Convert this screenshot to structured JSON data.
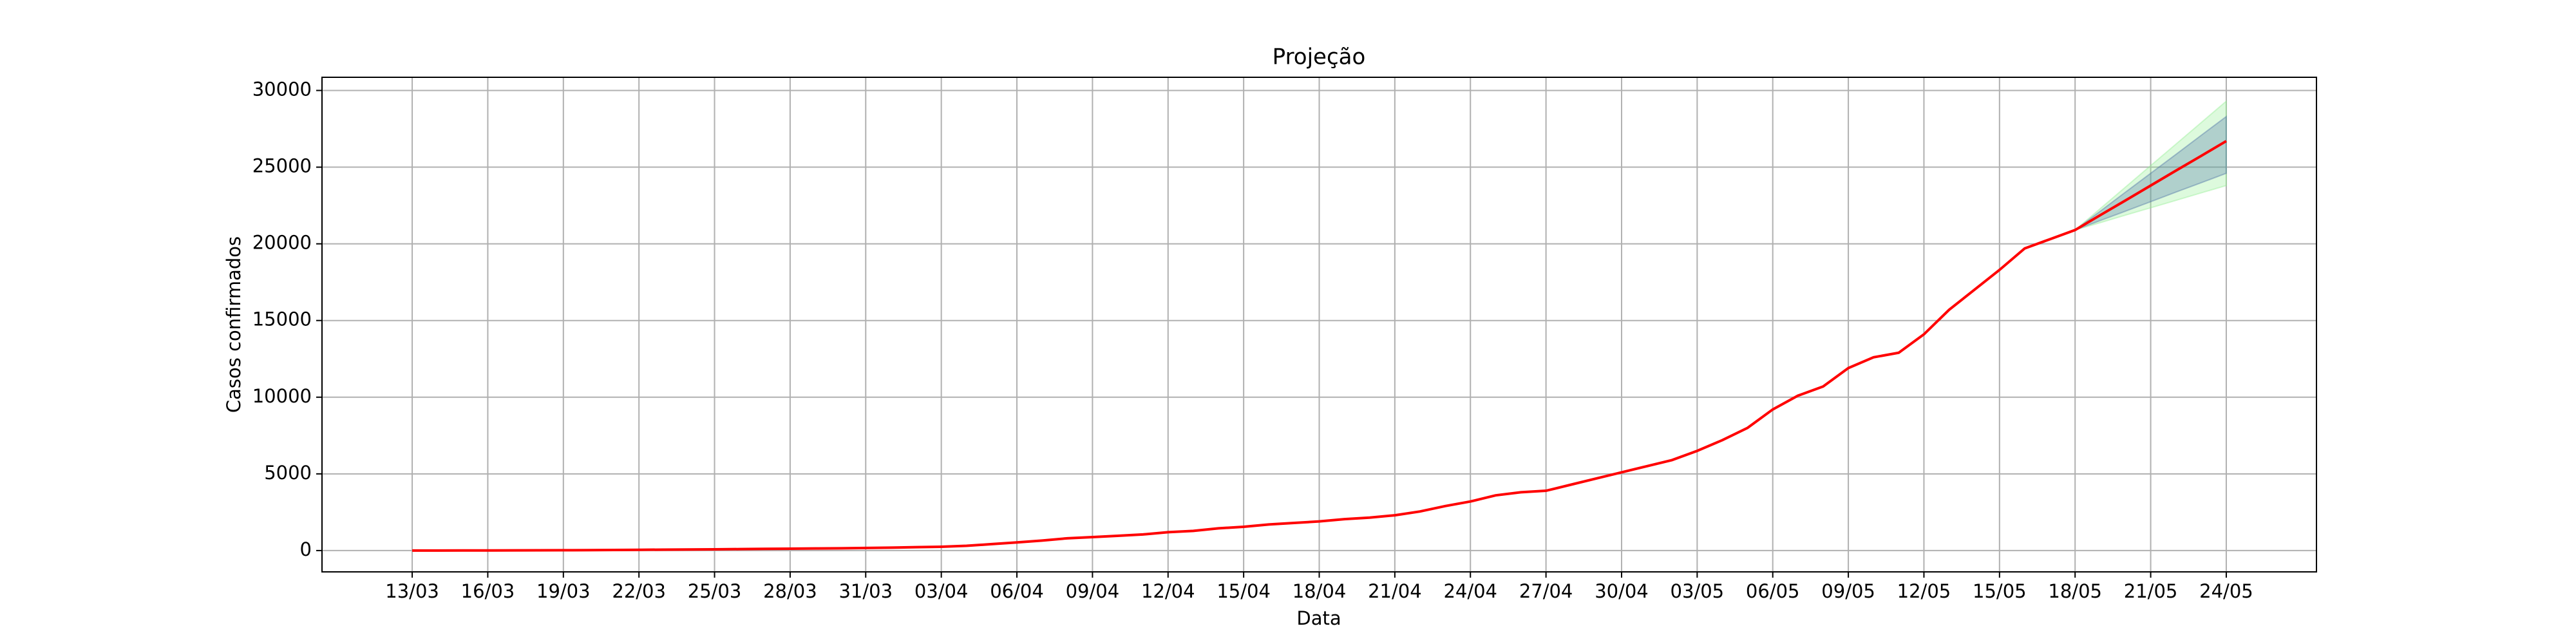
{
  "chart_data": {
    "type": "line",
    "title": "Projeção",
    "xlabel": "Data",
    "ylabel": "Casos confirmados",
    "categories": [
      "13/03",
      null,
      null,
      "16/03",
      null,
      null,
      "19/03",
      null,
      null,
      "22/03",
      null,
      null,
      "25/03",
      null,
      null,
      "28/03",
      null,
      null,
      "31/03",
      null,
      null,
      "03/04",
      null,
      null,
      "06/04",
      null,
      null,
      "09/04",
      null,
      null,
      "12/04",
      null,
      null,
      "15/04",
      null,
      null,
      "18/04",
      null,
      null,
      "21/04",
      null,
      null,
      "24/04",
      null,
      null,
      "27/04",
      null,
      null,
      "30/04",
      null,
      null,
      "03/05",
      null,
      null,
      "06/05",
      null,
      null,
      "09/05",
      null,
      null,
      "12/05",
      null,
      null,
      "15/05",
      null,
      null,
      "18/05",
      null,
      null,
      "21/05",
      null,
      null,
      "24/05"
    ],
    "series": [
      {
        "color": "#ff0000",
        "values": [
          0,
          2,
          5,
          8,
          12,
          16,
          20,
          28,
          38,
          50,
          60,
          70,
          80,
          95,
          110,
          120,
          135,
          150,
          170,
          190,
          220,
          250,
          310,
          420,
          530,
          650,
          800,
          880,
          960,
          1050,
          1200,
          1280,
          1450,
          1550,
          1700,
          1800,
          1900,
          2050,
          2150,
          2300,
          2550,
          2900,
          3200,
          3600,
          3800,
          3900,
          4300,
          4700,
          5100,
          5500,
          5900,
          6500,
          7200,
          8000,
          9200,
          10100,
          10700,
          11900,
          12600,
          12900,
          14100,
          15700,
          17000,
          18300,
          19700,
          20300,
          20900,
          21870,
          22830,
          23800,
          24770,
          25730,
          26700
        ]
      }
    ],
    "bands": [
      {
        "color": "#90ee90",
        "lower": [
          null,
          null,
          null,
          null,
          null,
          null,
          null,
          null,
          null,
          null,
          null,
          null,
          null,
          null,
          null,
          null,
          null,
          null,
          null,
          null,
          null,
          null,
          null,
          null,
          null,
          null,
          null,
          null,
          null,
          null,
          null,
          null,
          null,
          null,
          null,
          null,
          null,
          null,
          null,
          null,
          null,
          null,
          null,
          null,
          null,
          null,
          null,
          null,
          null,
          null,
          null,
          null,
          null,
          null,
          null,
          null,
          null,
          null,
          null,
          null,
          null,
          null,
          null,
          null,
          null,
          null,
          20900,
          21380,
          21870,
          22350,
          22830,
          23320,
          23800
        ],
        "upper": [
          null,
          null,
          null,
          null,
          null,
          null,
          null,
          null,
          null,
          null,
          null,
          null,
          null,
          null,
          null,
          null,
          null,
          null,
          null,
          null,
          null,
          null,
          null,
          null,
          null,
          null,
          null,
          null,
          null,
          null,
          null,
          null,
          null,
          null,
          null,
          null,
          null,
          null,
          null,
          null,
          null,
          null,
          null,
          null,
          null,
          null,
          null,
          null,
          null,
          null,
          null,
          null,
          null,
          null,
          null,
          null,
          null,
          null,
          null,
          null,
          null,
          null,
          null,
          null,
          null,
          null,
          20900,
          22300,
          23700,
          25100,
          26500,
          27900,
          29300
        ]
      },
      {
        "color": "#4a6fa5",
        "lower": [
          null,
          null,
          null,
          null,
          null,
          null,
          null,
          null,
          null,
          null,
          null,
          null,
          null,
          null,
          null,
          null,
          null,
          null,
          null,
          null,
          null,
          null,
          null,
          null,
          null,
          null,
          null,
          null,
          null,
          null,
          null,
          null,
          null,
          null,
          null,
          null,
          null,
          null,
          null,
          null,
          null,
          null,
          null,
          null,
          null,
          null,
          null,
          null,
          null,
          null,
          null,
          null,
          null,
          null,
          null,
          null,
          null,
          null,
          null,
          null,
          null,
          null,
          null,
          null,
          null,
          null,
          20900,
          21520,
          22130,
          22750,
          23370,
          23980,
          24600
        ],
        "upper": [
          null,
          null,
          null,
          null,
          null,
          null,
          null,
          null,
          null,
          null,
          null,
          null,
          null,
          null,
          null,
          null,
          null,
          null,
          null,
          null,
          null,
          null,
          null,
          null,
          null,
          null,
          null,
          null,
          null,
          null,
          null,
          null,
          null,
          null,
          null,
          null,
          null,
          null,
          null,
          null,
          null,
          null,
          null,
          null,
          null,
          null,
          null,
          null,
          null,
          null,
          null,
          null,
          null,
          null,
          null,
          null,
          null,
          null,
          null,
          null,
          null,
          null,
          null,
          null,
          null,
          null,
          20900,
          22130,
          23370,
          24600,
          25830,
          27070,
          28300
        ]
      }
    ],
    "ylim": [
      -1390,
      30860
    ],
    "yticks": [
      0,
      5000,
      10000,
      15000,
      20000,
      25000,
      30000
    ],
    "grid": true
  }
}
